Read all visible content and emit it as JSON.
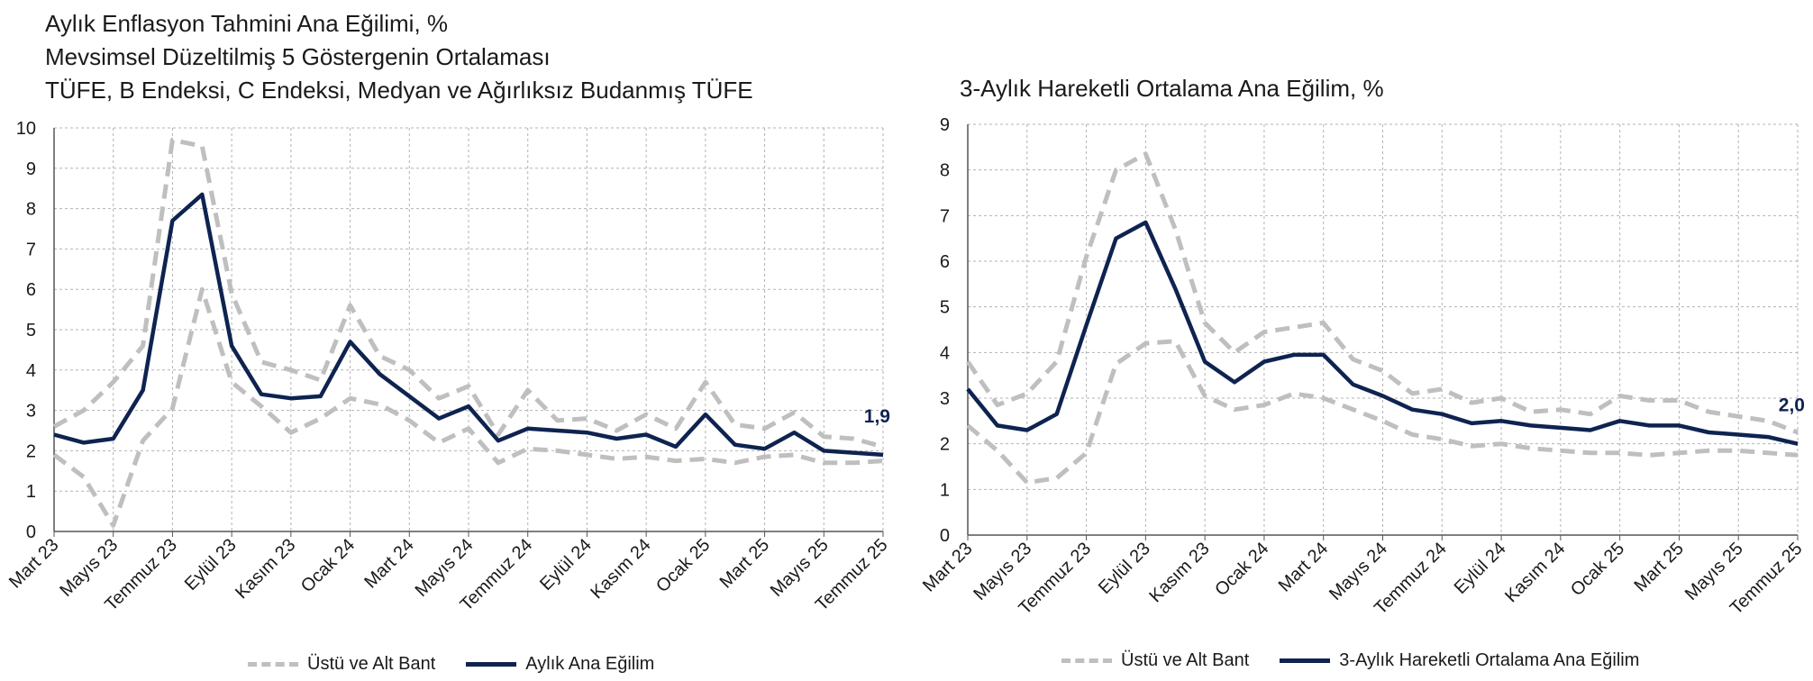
{
  "chart_data": [
    {
      "type": "line",
      "title_lines": [
        "Aylık Enflasyon Tahmini Ana Eğilimi, %",
        "Mevsimsel Düzeltilmiş 5 Göstergenin Ortalaması",
        "TÜFE, B Endeksi, C Endeksi, Medyan ve Ağırlıksız Budanmış TÜFE"
      ],
      "ylim": [
        0,
        10
      ],
      "yticks": [
        "0",
        "1",
        "2",
        "3",
        "4",
        "5",
        "6",
        "7",
        "8",
        "9",
        "10"
      ],
      "xtick_labels": [
        "Mart 23",
        "Mayıs 23",
        "Temmuz 23",
        "Eylül 23",
        "Kasım 23",
        "Ocak 24",
        "Mart 24",
        "Mayıs 24",
        "Temmuz 24",
        "Eylül 24",
        "Kasım 24",
        "Ocak 25",
        "Mart 25",
        "Mayıs 25",
        "Temmuz 25"
      ],
      "end_label": "1,9",
      "grid": true,
      "legend": [
        "Üstü ve Alt Bant",
        "Aylık Ana Eğilim"
      ],
      "legend_position": "bottom",
      "colors": {
        "band": "#bfbfbf",
        "main": "#0e2350"
      },
      "series": [
        {
          "name": "Aylık Ana Eğilim",
          "role": "main",
          "values": [
            2.4,
            2.2,
            2.3,
            3.5,
            7.7,
            8.35,
            4.6,
            3.4,
            3.3,
            3.35,
            4.7,
            3.9,
            3.35,
            2.8,
            3.1,
            2.25,
            2.55,
            2.5,
            2.45,
            2.3,
            2.4,
            2.1,
            2.9,
            2.15,
            2.05,
            2.45,
            2.0,
            1.95,
            1.9
          ]
        },
        {
          "name": "Üstü ve Alt Bant",
          "role": "upper",
          "values": [
            2.6,
            3.0,
            3.7,
            4.6,
            9.7,
            9.55,
            5.9,
            4.2,
            4.0,
            3.75,
            5.6,
            4.35,
            4.0,
            3.3,
            3.6,
            2.4,
            3.5,
            2.75,
            2.8,
            2.5,
            2.9,
            2.55,
            3.7,
            2.65,
            2.55,
            2.95,
            2.35,
            2.3,
            2.1
          ]
        },
        {
          "name": "Üstü ve Alt Bant",
          "role": "lower",
          "values": [
            1.9,
            1.35,
            0.15,
            2.25,
            3.05,
            6.0,
            3.7,
            3.1,
            2.45,
            2.8,
            3.3,
            3.15,
            2.75,
            2.2,
            2.55,
            1.7,
            2.05,
            2.0,
            1.9,
            1.8,
            1.85,
            1.75,
            1.8,
            1.7,
            1.85,
            1.9,
            1.7,
            1.7,
            1.75
          ]
        }
      ]
    },
    {
      "type": "line",
      "title_lines": [
        "3-Aylık Hareketli Ortalama Ana Eğilim, %"
      ],
      "ylim": [
        0,
        9
      ],
      "yticks": [
        "0",
        "1",
        "2",
        "3",
        "4",
        "5",
        "6",
        "7",
        "8",
        "9"
      ],
      "xtick_labels": [
        "Mart 23",
        "Mayıs 23",
        "Temmuz 23",
        "Eylül 23",
        "Kasım 23",
        "Ocak 24",
        "Mart 24",
        "Mayıs 24",
        "Temmuz 24",
        "Eylül 24",
        "Kasım 24",
        "Ocak 25",
        "Mart 25",
        "Mayıs 25",
        "Temmuz 25"
      ],
      "end_label": "2,0",
      "grid": true,
      "legend": [
        "Üstü ve Alt Bant",
        "3-Aylık Hareketli Ortalama Ana Eğilim"
      ],
      "legend_position": "bottom",
      "colors": {
        "band": "#bfbfbf",
        "main": "#0e2350"
      },
      "series": [
        {
          "name": "3-Aylık Hareketli Ortalama Ana Eğilim",
          "role": "main",
          "values": [
            3.2,
            2.4,
            2.3,
            2.65,
            4.6,
            6.5,
            6.85,
            5.4,
            3.8,
            3.35,
            3.8,
            3.95,
            3.95,
            3.3,
            3.05,
            2.75,
            2.65,
            2.45,
            2.5,
            2.4,
            2.35,
            2.3,
            2.5,
            2.4,
            2.4,
            2.25,
            2.2,
            2.15,
            2.0
          ]
        },
        {
          "name": "Üstü ve Alt Bant",
          "role": "upper",
          "values": [
            3.8,
            2.85,
            3.1,
            3.8,
            6.1,
            8.0,
            8.35,
            6.7,
            4.65,
            4.0,
            4.45,
            4.55,
            4.65,
            3.85,
            3.6,
            3.1,
            3.2,
            2.9,
            3.0,
            2.7,
            2.75,
            2.65,
            3.05,
            2.95,
            2.95,
            2.7,
            2.6,
            2.5,
            2.25
          ]
        },
        {
          "name": "Üstü ve Alt Bant",
          "role": "lower",
          "values": [
            2.4,
            1.85,
            1.15,
            1.25,
            1.8,
            3.75,
            4.2,
            4.25,
            3.05,
            2.75,
            2.85,
            3.1,
            3.0,
            2.75,
            2.5,
            2.2,
            2.1,
            1.95,
            2.0,
            1.9,
            1.85,
            1.8,
            1.8,
            1.75,
            1.8,
            1.85,
            1.85,
            1.8,
            1.75
          ]
        }
      ]
    }
  ]
}
